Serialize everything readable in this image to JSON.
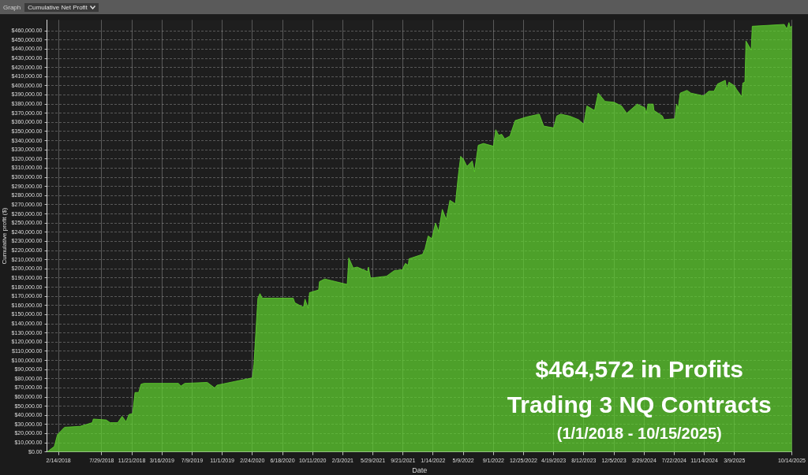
{
  "chart_data": {
    "type": "area",
    "xlabel": "Date",
    "ylabel": "Cumulative profit ($)",
    "annotations": [
      "Graph",
      "Cumulative Net Profit",
      "$464,572 in Profits",
      "Trading 3 NQ Contracts",
      "(1/1/2018 - 10/15/2025)"
    ],
    "x": [
      "2018-01-01",
      "2018-01-29",
      "2018-02-10",
      "2018-03-09",
      "2018-05-07",
      "2018-06-23",
      "2018-06-27",
      "2018-08-15",
      "2018-08-30",
      "2018-09-28",
      "2018-10-15",
      "2018-10-30",
      "2018-11-10",
      "2018-11-24",
      "2018-12-03",
      "2018-12-17",
      "2018-12-26",
      "2019-01-06",
      "2019-05-18",
      "2019-05-27",
      "2019-06-11",
      "2019-09-05",
      "2019-10-03",
      "2019-10-12",
      "2020-02-24",
      "2020-03-01",
      "2020-03-16",
      "2020-03-24",
      "2020-04-02",
      "2020-07-29",
      "2020-08-04",
      "2020-09-06",
      "2020-09-12",
      "2020-09-24",
      "2020-09-29",
      "2020-11-03",
      "2020-11-06",
      "2020-11-26",
      "2021-02-20",
      "2021-02-26",
      "2021-03-15",
      "2021-03-30",
      "2021-05-09",
      "2021-05-12",
      "2021-05-20",
      "2021-07-20",
      "2021-08-18",
      "2021-09-18",
      "2021-09-30",
      "2021-10-11",
      "2021-10-14",
      "2021-12-05",
      "2021-12-14",
      "2021-12-26",
      "2022-01-09",
      "2022-01-23",
      "2022-02-04",
      "2022-02-18",
      "2022-03-05",
      "2022-03-19",
      "2022-04-09",
      "2022-04-20",
      "2022-04-29",
      "2022-05-09",
      "2022-05-23",
      "2022-06-12",
      "2022-06-21",
      "2022-07-05",
      "2022-07-25",
      "2022-09-01",
      "2022-09-10",
      "2022-09-21",
      "2022-10-03",
      "2022-10-14",
      "2022-11-03",
      "2022-11-23",
      "2023-01-06",
      "2023-02-23",
      "2023-03-12",
      "2023-04-19",
      "2023-05-01",
      "2023-05-15",
      "2023-06-18",
      "2023-07-23",
      "2023-08-12",
      "2023-08-24",
      "2023-09-22",
      "2023-10-06",
      "2023-11-01",
      "2023-12-05",
      "2024-01-03",
      "2024-01-23",
      "2024-03-03",
      "2024-04-01",
      "2024-04-07",
      "2024-04-13",
      "2024-05-03",
      "2024-05-06",
      "2024-06-07",
      "2024-06-13",
      "2024-07-25",
      "2024-07-31",
      "2024-08-06",
      "2024-08-14",
      "2024-09-09",
      "2024-09-24",
      "2024-11-11",
      "2024-12-01",
      "2024-12-21",
      "2025-01-04",
      "2025-02-02",
      "2025-02-08",
      "2025-02-16",
      "2025-03-09",
      "2025-03-17",
      "2025-04-06",
      "2025-04-10",
      "2025-04-18",
      "2025-04-22",
      "2025-05-12",
      "2025-05-16",
      "2025-09-15",
      "2025-09-25",
      "2025-10-03",
      "2025-10-07",
      "2025-10-15"
    ],
    "series": [
      {
        "color": "#5fd32f",
        "values": [
          0,
          6000,
          19000,
          27000,
          28000,
          32000,
          36000,
          35000,
          32000,
          32000,
          39000,
          33000,
          41000,
          42000,
          65000,
          65000,
          74000,
          75000,
          75000,
          72000,
          75000,
          76000,
          70000,
          73000,
          81000,
          96000,
          168000,
          173000,
          168000,
          168000,
          163000,
          158000,
          167000,
          157000,
          174000,
          177000,
          186000,
          189000,
          183000,
          212000,
          201000,
          202000,
          197000,
          202000,
          190000,
          192000,
          198000,
          199000,
          206000,
          204000,
          211000,
          216000,
          222000,
          236000,
          233000,
          250000,
          241000,
          265000,
          254000,
          275000,
          271000,
          302000,
          323000,
          320000,
          312000,
          318000,
          306000,
          335000,
          337000,
          334000,
          352000,
          346000,
          347000,
          342000,
          345000,
          362000,
          366000,
          369000,
          356000,
          354000,
          367000,
          369000,
          367000,
          363000,
          358000,
          378000,
          373000,
          392000,
          383000,
          382000,
          378000,
          370000,
          380000,
          376000,
          370000,
          380000,
          380000,
          373000,
          367000,
          363000,
          364000,
          380000,
          375000,
          392000,
          395000,
          392000,
          389000,
          394000,
          394000,
          402000,
          406000,
          396000,
          404000,
          400000,
          396000,
          388000,
          403000,
          404000,
          449000,
          439000,
          465000,
          467000,
          462000,
          469000,
          464000,
          465000
        ]
      }
    ],
    "xlim": [
      "2018-01-01",
      "2025-10-15"
    ],
    "xticks": [
      {
        "value": "2018-02-14",
        "label": "2/14/2018"
      },
      {
        "value": "2018-07-29",
        "label": "7/29/2018"
      },
      {
        "value": "2018-11-21",
        "label": "11/21/2018"
      },
      {
        "value": "2019-03-16",
        "label": "3/16/2019"
      },
      {
        "value": "2019-07-09",
        "label": "7/9/2019"
      },
      {
        "value": "2019-11-01",
        "label": "11/1/2019"
      },
      {
        "value": "2020-02-24",
        "label": "2/24/2020"
      },
      {
        "value": "2020-06-18",
        "label": "6/18/2020"
      },
      {
        "value": "2020-10-11",
        "label": "10/11/2020"
      },
      {
        "value": "2021-02-03",
        "label": "2/3/2021"
      },
      {
        "value": "2021-05-29",
        "label": "5/29/2021"
      },
      {
        "value": "2021-09-21",
        "label": "9/21/2021"
      },
      {
        "value": "2022-01-14",
        "label": "1/14/2022"
      },
      {
        "value": "2022-05-09",
        "label": "5/9/2022"
      },
      {
        "value": "2022-09-01",
        "label": "9/1/2022"
      },
      {
        "value": "2022-12-25",
        "label": "12/25/2022"
      },
      {
        "value": "2023-04-19",
        "label": "4/19/2023"
      },
      {
        "value": "2023-08-12",
        "label": "8/12/2023"
      },
      {
        "value": "2023-12-05",
        "label": "12/5/2023"
      },
      {
        "value": "2024-03-29",
        "label": "3/29/2024"
      },
      {
        "value": "2024-07-22",
        "label": "7/22/2024"
      },
      {
        "value": "2024-11-14",
        "label": "11/14/2024"
      },
      {
        "value": "2025-03-09",
        "label": "3/9/2025"
      },
      {
        "value": "2025-10-14",
        "label": "10/14/2025"
      }
    ],
    "ylim": [
      0,
      472000
    ],
    "yticks": [
      {
        "value": 0,
        "label": "$0.00"
      },
      {
        "value": 10000,
        "label": "$10,000.00"
      },
      {
        "value": 20000,
        "label": "$20,000.00"
      },
      {
        "value": 30000,
        "label": "$30,000.00"
      },
      {
        "value": 40000,
        "label": "$40,000.00"
      },
      {
        "value": 50000,
        "label": "$50,000.00"
      },
      {
        "value": 60000,
        "label": "$60,000.00"
      },
      {
        "value": 70000,
        "label": "$70,000.00"
      },
      {
        "value": 80000,
        "label": "$80,000.00"
      },
      {
        "value": 90000,
        "label": "$90,000.00"
      },
      {
        "value": 100000,
        "label": "$100,000.00"
      },
      {
        "value": 110000,
        "label": "$110,000.00"
      },
      {
        "value": 120000,
        "label": "$120,000.00"
      },
      {
        "value": 130000,
        "label": "$130,000.00"
      },
      {
        "value": 140000,
        "label": "$140,000.00"
      },
      {
        "value": 150000,
        "label": "$150,000.00"
      },
      {
        "value": 160000,
        "label": "$160,000.00"
      },
      {
        "value": 170000,
        "label": "$170,000.00"
      },
      {
        "value": 180000,
        "label": "$180,000.00"
      },
      {
        "value": 190000,
        "label": "$190,000.00"
      },
      {
        "value": 200000,
        "label": "$200,000.00"
      },
      {
        "value": 210000,
        "label": "$210,000.00"
      },
      {
        "value": 220000,
        "label": "$220,000.00"
      },
      {
        "value": 230000,
        "label": "$230,000.00"
      },
      {
        "value": 240000,
        "label": "$240,000.00"
      },
      {
        "value": 250000,
        "label": "$250,000.00"
      },
      {
        "value": 260000,
        "label": "$260,000.00"
      },
      {
        "value": 270000,
        "label": "$270,000.00"
      },
      {
        "value": 280000,
        "label": "$280,000.00"
      },
      {
        "value": 290000,
        "label": "$290,000.00"
      },
      {
        "value": 300000,
        "label": "$300,000.00"
      },
      {
        "value": 310000,
        "label": "$310,000.00"
      },
      {
        "value": 320000,
        "label": "$320,000.00"
      },
      {
        "value": 330000,
        "label": "$330,000.00"
      },
      {
        "value": 340000,
        "label": "$340,000.00"
      },
      {
        "value": 350000,
        "label": "$350,000.00"
      },
      {
        "value": 360000,
        "label": "$360,000.00"
      },
      {
        "value": 370000,
        "label": "$370,000.00"
      },
      {
        "value": 380000,
        "label": "$380,000.00"
      },
      {
        "value": 390000,
        "label": "$390,000.00"
      },
      {
        "value": 400000,
        "label": "$400,000.00"
      },
      {
        "value": 410000,
        "label": "$410,000.00"
      },
      {
        "value": 420000,
        "label": "$420,000.00"
      },
      {
        "value": 430000,
        "label": "$430,000.00"
      },
      {
        "value": 440000,
        "label": "$440,000.00"
      },
      {
        "value": 450000,
        "label": "$450,000.00"
      },
      {
        "value": 460000,
        "label": "$460,000.00"
      }
    ],
    "grid": true
  }
}
